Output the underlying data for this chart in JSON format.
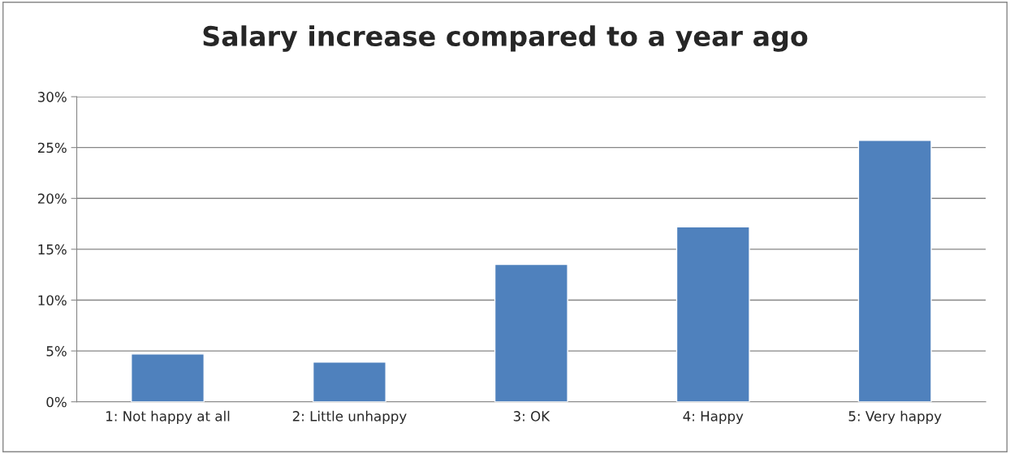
{
  "chart_data": {
    "type": "bar",
    "title": "Salary increase compared to a year ago",
    "categories": [
      "1: Not happy at all",
      "2: Little unhappy",
      "3: OK",
      "4: Happy",
      "5: Very happy"
    ],
    "values": [
      4.7,
      3.9,
      13.5,
      17.2,
      25.7
    ],
    "color": "#4f81bd",
    "ylim": [
      0,
      30
    ],
    "yticks": [
      {
        "value": 0,
        "label": "0%"
      },
      {
        "value": 5,
        "label": "5%"
      },
      {
        "value": 10,
        "label": "10%"
      },
      {
        "value": 15,
        "label": "15%"
      },
      {
        "value": 20,
        "label": "20%"
      },
      {
        "value": 25,
        "label": "25%"
      },
      {
        "value": 30,
        "label": "30%"
      }
    ],
    "grid": "y"
  }
}
